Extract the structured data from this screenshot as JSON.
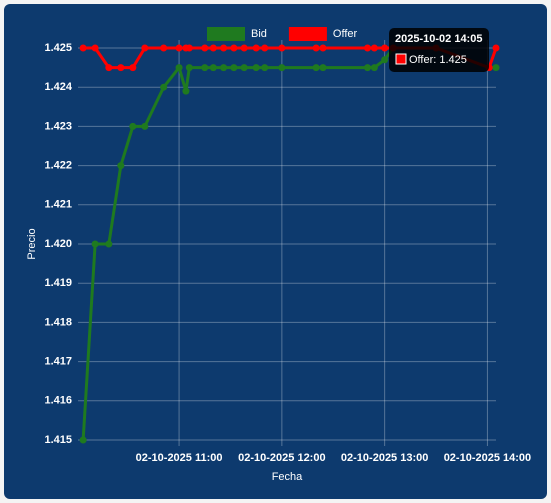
{
  "chart_data": {
    "type": "line",
    "x_label": "Fecha",
    "y_label": "Precio",
    "x": [
      "02-10-2025 10:04",
      "02-10-2025 10:11",
      "02-10-2025 10:19",
      "02-10-2025 10:26",
      "02-10-2025 10:33",
      "02-10-2025 10:40",
      "02-10-2025 10:51",
      "02-10-2025 11:00",
      "02-10-2025 11:04",
      "02-10-2025 11:06",
      "02-10-2025 11:15",
      "02-10-2025 11:20",
      "02-10-2025 11:26",
      "02-10-2025 11:32",
      "02-10-2025 11:38",
      "02-10-2025 11:45",
      "02-10-2025 11:50",
      "02-10-2025 12:00",
      "02-10-2025 12:20",
      "02-10-2025 12:24",
      "02-10-2025 12:50",
      "02-10-2025 12:54",
      "02-10-2025 13:00",
      "02-10-2025 13:05",
      "02-10-2025 13:30",
      "02-10-2025 14:01",
      "02-10-2025 14:05"
    ],
    "series": [
      {
        "name": "Bid",
        "color": "#1f7a1f",
        "values": [
          1.415,
          1.42,
          1.42,
          1.422,
          1.423,
          1.423,
          1.424,
          1.4245,
          1.4239,
          1.4245,
          1.4245,
          1.4245,
          1.4245,
          1.4245,
          1.4245,
          1.4245,
          1.4245,
          1.4245,
          1.4245,
          1.4245,
          1.4245,
          1.4245,
          1.4247,
          1.425,
          1.425,
          1.4245,
          1.4245
        ]
      },
      {
        "name": "Offer",
        "color": "#ff0000",
        "values": [
          1.425,
          1.425,
          1.4245,
          1.4245,
          1.4245,
          1.425,
          1.425,
          1.425,
          1.425,
          1.425,
          1.425,
          1.425,
          1.425,
          1.425,
          1.425,
          1.425,
          1.425,
          1.425,
          1.425,
          1.425,
          1.425,
          1.425,
          1.425,
          1.425,
          1.425,
          1.4245,
          1.425
        ]
      }
    ],
    "xlim": [
      "02-10-2025 10:01",
      "02-10-2025 14:05"
    ],
    "xticks": [
      "02-10-2025 11:00",
      "02-10-2025 12:00",
      "02-10-2025 13:00",
      "02-10-2025 14:00"
    ],
    "ylim": [
      1.415,
      1.425
    ],
    "yticks": [
      1.415,
      1.416,
      1.417,
      1.418,
      1.419,
      {
        "value": 1.42,
        "label": "1.420"
      },
      1.421,
      1.422,
      1.423,
      1.424,
      1.425
    ],
    "grid": true,
    "legend": "top",
    "tooltip": {
      "title": "2025-10-02 14:05",
      "label": "Offer: 1.425",
      "series": 1
    }
  }
}
